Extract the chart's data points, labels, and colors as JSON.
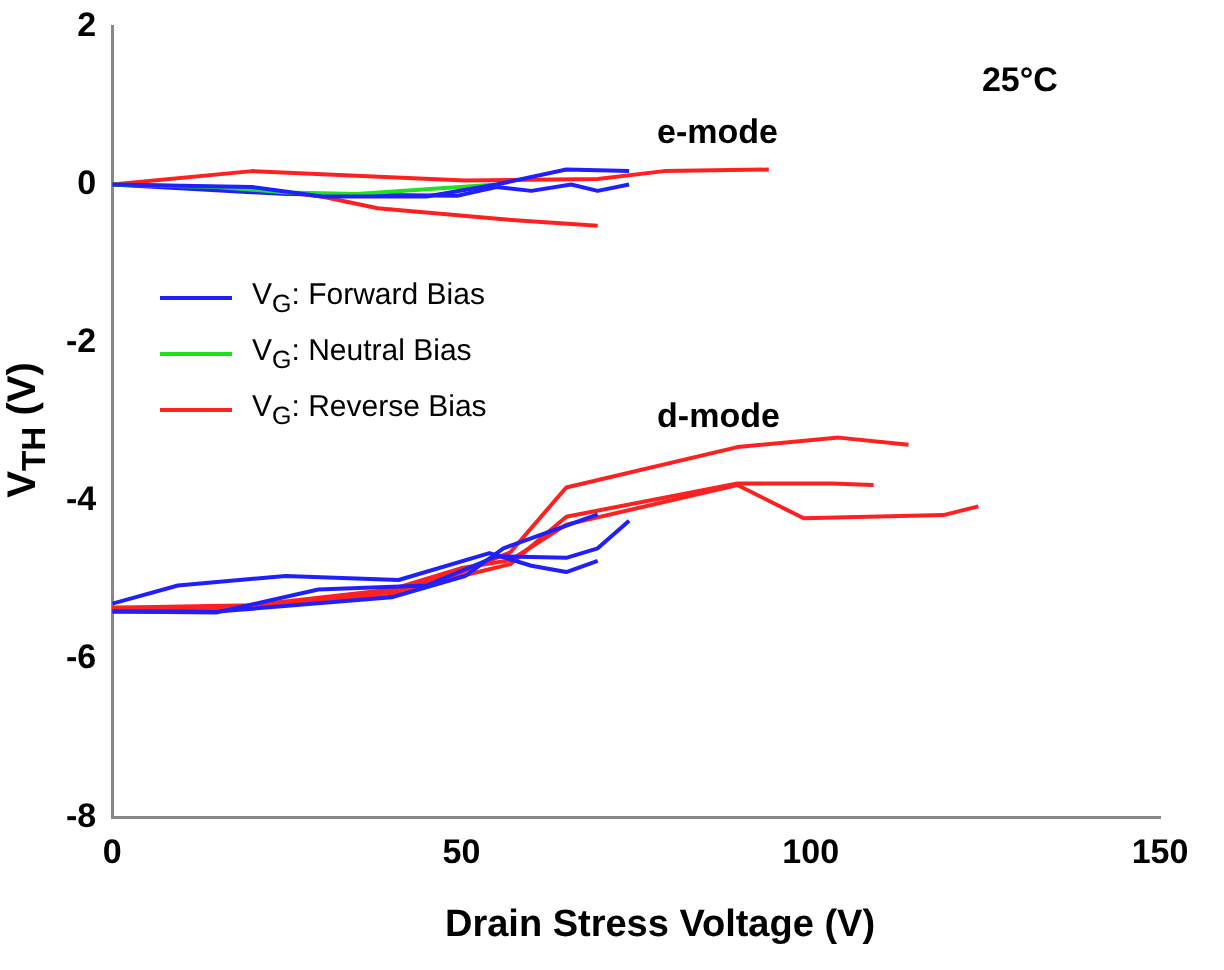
{
  "chart_data": {
    "type": "line",
    "xlabel": "Drain Stress Voltage (V)",
    "ylabel": "V$_{TH}$ (V)",
    "xlim": [
      0,
      150
    ],
    "xticks": [
      0,
      50,
      100,
      150
    ],
    "ylim": [
      -8,
      2
    ],
    "yticks": [
      -8,
      -6,
      -4,
      -2,
      0,
      2
    ],
    "grid": false,
    "legend": "left",
    "marker": "none",
    "line_style": "solid",
    "annotations": [
      "e-mode",
      "d-mode",
      "25°C"
    ],
    "series": [
      {
        "name": "V$_{G}$: Forward Bias",
        "color": "#2020ff",
        "x": [
          0,
          20,
          30,
          45,
          55,
          65,
          74
        ],
        "values": [
          0,
          -0.03,
          -0.15,
          -0.15,
          0,
          0.19,
          0.17
        ]
      },
      {
        "name": "V$_{G}$: Neutral Bias",
        "color": "#20e020",
        "x": [
          0,
          15,
          25,
          35,
          45,
          55
        ],
        "values": [
          0,
          -0.03,
          -0.1,
          -0.12,
          -0.06,
          0
        ]
      },
      {
        "name": "V$_{G}$: Reverse Bias",
        "color": "#ff2020",
        "x": [
          0,
          20,
          50.5,
          69.5,
          79,
          94
        ],
        "values": [
          0,
          0.17,
          0.05,
          0.07,
          0.17,
          0.19
        ]
      },
      {
        "color": "#2020ff",
        "x": [
          0,
          25,
          49.5,
          55,
          60,
          65.7,
          69.5,
          74
        ],
        "values": [
          0,
          -0.12,
          -0.14,
          -0.03,
          -0.08,
          0,
          -0.08,
          0
        ]
      },
      {
        "color": "#ff2020",
        "x": [
          0,
          20,
          30,
          38,
          56,
          69.5
        ],
        "values": [
          0,
          -0.05,
          -0.15,
          -0.3,
          -0.44,
          -0.52
        ]
      },
      {
        "color": "#2020ff",
        "x": [
          0,
          9.4,
          24.8,
          41,
          54,
          60,
          65,
          69.5
        ],
        "values": [
          -5.3,
          -5.07,
          -4.95,
          -5.0,
          -4.66,
          -4.82,
          -4.9,
          -4.76
        ]
      },
      {
        "color": "#2020ff",
        "x": [
          0,
          15,
          29.5,
          45,
          55,
          65,
          69.5,
          74
        ],
        "values": [
          -5.4,
          -5.41,
          -5.12,
          -5.07,
          -4.7,
          -4.72,
          -4.6,
          -4.25
        ]
      },
      {
        "color": "#2020ff",
        "x": [
          0,
          15,
          40,
          50.5,
          56,
          69.5
        ],
        "values": [
          -5.4,
          -5.4,
          -5.22,
          -4.95,
          -4.6,
          -4.17
        ]
      },
      {
        "color": "#ff2020",
        "x": [
          0,
          20,
          40,
          50,
          57,
          65,
          89.5,
          104,
          114
        ],
        "values": [
          -5.35,
          -5.35,
          -5.15,
          -4.9,
          -4.65,
          -3.83,
          -3.32,
          -3.2,
          -3.29
        ]
      },
      {
        "color": "#ff2020",
        "x": [
          0,
          20,
          40,
          50,
          57,
          65,
          89.5,
          103,
          109
        ],
        "values": [
          -5.38,
          -5.33,
          -5.2,
          -4.95,
          -4.8,
          -4.2,
          -3.78,
          -3.78,
          -3.8
        ]
      },
      {
        "color": "#ff2020",
        "x": [
          0,
          20,
          40,
          50,
          57,
          65,
          89.5,
          99,
          119,
          124
        ],
        "values": [
          -5.35,
          -5.32,
          -5.12,
          -4.85,
          -4.75,
          -4.3,
          -3.8,
          -4.22,
          -4.18,
          -4.07
        ]
      }
    ]
  }
}
